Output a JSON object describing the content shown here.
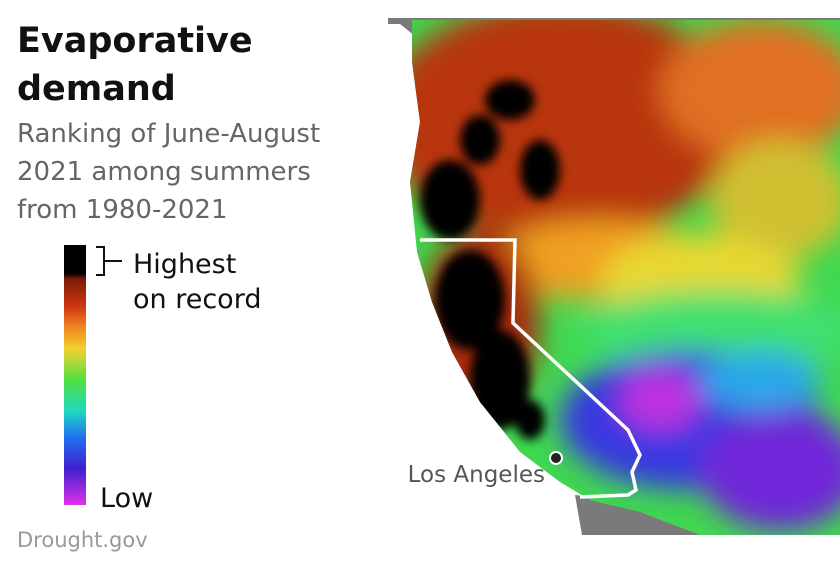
{
  "header": {
    "title": [
      "Evaporative",
      "demand"
    ],
    "subtitle": [
      "Ranking of June-August",
      "2021 among summers",
      "from 1980-2021"
    ]
  },
  "legend": {
    "high": [
      "Highest",
      "on record"
    ],
    "low": "Low"
  },
  "map": {
    "city_label": "Los Angeles"
  },
  "source": "Drought.gov"
}
